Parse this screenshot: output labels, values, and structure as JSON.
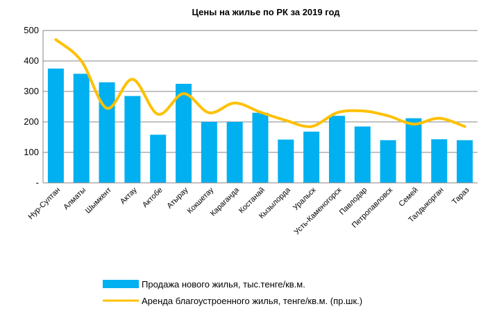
{
  "chart_data": {
    "type": "combo",
    "title": "Цены на жилье по РК за 2019 год",
    "categories": [
      "Нур-Султан",
      "Алматы",
      "Шымкент",
      "Актау",
      "Актобе",
      "Атырау",
      "Кокшетау",
      "Караганда",
      "Костанай",
      "Кызылорда",
      "Уральск",
      "Усть-Каменогорск",
      "Павлодар",
      "Петропавловск",
      "Семей",
      "Талдыкорган",
      "Тараз"
    ],
    "series": [
      {
        "name": "Продажа нового жилья, тыс.тенге/кв.м.",
        "type": "bar",
        "color": "#00b0f0",
        "values": [
          375,
          358,
          330,
          285,
          158,
          325,
          200,
          200,
          230,
          142,
          168,
          220,
          185,
          140,
          212,
          143,
          140
        ]
      },
      {
        "name": "Аренда благоустроенного жилья, тенге/кв.м. (пр.шк.)",
        "type": "line",
        "color": "#ffc000",
        "values": [
          470,
          400,
          245,
          340,
          225,
          293,
          230,
          262,
          232,
          205,
          185,
          230,
          236,
          220,
          193,
          212,
          185
        ]
      }
    ],
    "ylim": [
      0,
      500
    ],
    "yticks": [
      {
        "value": 0,
        "label": "-"
      },
      100,
      200,
      300,
      400,
      500
    ],
    "grid": true,
    "legend": "bottom"
  }
}
